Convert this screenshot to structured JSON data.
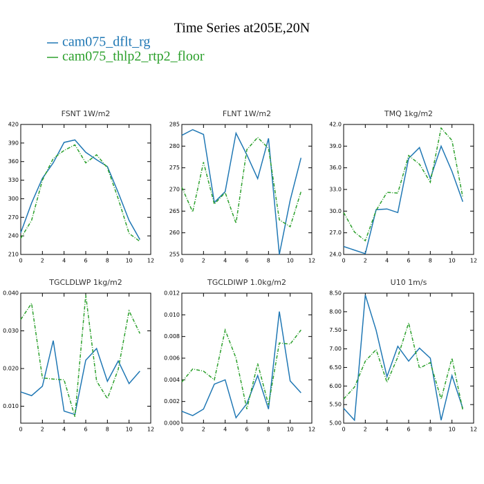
{
  "title": "Time Series at205E,20N",
  "chart_data": [
    {
      "type": "line",
      "title": "FSNT   1W/m2",
      "x": [
        0,
        1,
        2,
        3,
        4,
        5,
        6,
        7,
        8,
        9,
        10,
        11
      ],
      "xlim": [
        0,
        12
      ],
      "xticks": [
        0,
        2,
        4,
        6,
        8,
        10,
        12
      ],
      "ylim": [
        210,
        420
      ],
      "yticks": [
        210,
        240,
        270,
        300,
        330,
        360,
        390,
        420
      ],
      "series": [
        {
          "name": "cam075_dflt_rg",
          "color": "#1f77b4",
          "values": [
            245,
            293,
            333,
            358,
            391,
            395,
            375,
            363,
            352,
            310,
            265,
            234
          ]
        },
        {
          "name": "cam075_thlp2_rtp2_floor",
          "color": "#2ca02c",
          "dashed": true,
          "values": [
            236,
            265,
            330,
            365,
            378,
            387,
            358,
            371,
            350,
            300,
            244,
            231
          ]
        }
      ]
    },
    {
      "type": "line",
      "title": "FLNT   1W/m2",
      "x": [
        0,
        1,
        2,
        3,
        4,
        5,
        6,
        7,
        8,
        9,
        10,
        11
      ],
      "xlim": [
        0,
        12
      ],
      "xticks": [
        0,
        2,
        4,
        6,
        8,
        10,
        12
      ],
      "ylim": [
        255,
        285
      ],
      "yticks": [
        255,
        260,
        265,
        270,
        275,
        280,
        285
      ],
      "series": [
        {
          "color": "#1f77b4",
          "values": [
            282.5,
            283.8,
            282.7,
            267,
            269.5,
            283,
            278,
            272.5,
            281.8,
            255,
            267.5,
            277.3
          ]
        },
        {
          "color": "#2ca02c",
          "dashed": true,
          "values": [
            270.5,
            264.8,
            276.3,
            266.6,
            269.3,
            262.2,
            279.2,
            282,
            279.5,
            263,
            261.4,
            269.5
          ]
        }
      ]
    },
    {
      "type": "line",
      "title": "TMQ   1kg/m2",
      "x": [
        0,
        1,
        2,
        3,
        4,
        5,
        6,
        7,
        8,
        9,
        10,
        11
      ],
      "xlim": [
        0,
        12
      ],
      "xticks": [
        0,
        2,
        4,
        6,
        8,
        10,
        12
      ],
      "ylim": [
        24,
        42
      ],
      "yticks": [
        {
          "value": 24,
          "label": "24.0"
        },
        {
          "value": 27,
          "label": "27.0"
        },
        {
          "value": 30,
          "label": "30.0"
        },
        {
          "value": 33,
          "label": "33.0"
        },
        {
          "value": 36,
          "label": "36.0"
        },
        {
          "value": 39,
          "label": "39.0"
        },
        {
          "value": 42,
          "label": "42.0"
        }
      ],
      "series": [
        {
          "color": "#1f77b4",
          "values": [
            25.1,
            24.6,
            24.1,
            30.2,
            30.3,
            29.8,
            37.3,
            38.8,
            34.5,
            39.0,
            35.5,
            31.3
          ]
        },
        {
          "color": "#2ca02c",
          "dashed": true,
          "values": [
            29.8,
            27.1,
            25.9,
            30.1,
            32.6,
            32.5,
            37.7,
            36.5,
            34.0,
            41.5,
            39.8,
            31.9
          ]
        }
      ]
    },
    {
      "type": "line",
      "title": "TGCLDLWP   1kg/m2",
      "x": [
        0,
        1,
        2,
        3,
        4,
        5,
        6,
        7,
        8,
        9,
        10,
        11
      ],
      "xlim": [
        0,
        12
      ],
      "xticks": [
        0,
        2,
        4,
        6,
        8,
        10,
        12
      ],
      "ylim": [
        0.0055,
        0.04
      ],
      "yticks": [
        {
          "value": 0.01,
          "label": "0.010"
        },
        {
          "value": 0.02,
          "label": "0.020"
        },
        {
          "value": 0.03,
          "label": "0.030"
        },
        {
          "value": 0.04,
          "label": "0.040"
        }
      ],
      "series": [
        {
          "color": "#1f77b4",
          "values": [
            0.0138,
            0.0128,
            0.0153,
            0.0274,
            0.0087,
            0.0078,
            0.0222,
            0.0253,
            0.0166,
            0.022,
            0.016,
            0.0193
          ]
        },
        {
          "color": "#2ca02c",
          "dashed": true,
          "values": [
            0.033,
            0.0373,
            0.0175,
            0.0172,
            0.017,
            0.0072,
            0.0395,
            0.0167,
            0.012,
            0.0198,
            0.0353,
            0.0293
          ]
        }
      ]
    },
    {
      "type": "line",
      "title": "TGCLDIWP   1.0kg/m2",
      "x": [
        0,
        1,
        2,
        3,
        4,
        5,
        6,
        7,
        8,
        9,
        10,
        11
      ],
      "xlim": [
        0,
        12
      ],
      "xticks": [
        0,
        2,
        4,
        6,
        8,
        10,
        12
      ],
      "ylim": [
        0,
        0.012
      ],
      "yticks": [
        {
          "value": 0,
          "label": "0.000"
        },
        {
          "value": 0.002,
          "label": "0.002"
        },
        {
          "value": 0.004,
          "label": "0.004"
        },
        {
          "value": 0.006,
          "label": "0.006"
        },
        {
          "value": 0.008,
          "label": "0.008"
        },
        {
          "value": 0.01,
          "label": "0.010"
        },
        {
          "value": 0.012,
          "label": "0.012"
        }
      ],
      "series": [
        {
          "color": "#1f77b4",
          "values": [
            0.0011,
            0.0007,
            0.0013,
            0.0036,
            0.004,
            0.0005,
            0.0018,
            0.0044,
            0.0013,
            0.0103,
            0.0039,
            0.0028
          ]
        },
        {
          "color": "#2ca02c",
          "dashed": true,
          "values": [
            0.0038,
            0.005,
            0.0048,
            0.004,
            0.0086,
            0.006,
            0.0013,
            0.0055,
            0.0017,
            0.0074,
            0.0073,
            0.0086
          ]
        }
      ]
    },
    {
      "type": "line",
      "title": "U10   1m/s",
      "x": [
        0,
        1,
        2,
        3,
        4,
        5,
        6,
        7,
        8,
        9,
        10,
        11
      ],
      "xlim": [
        0,
        12
      ],
      "xticks": [
        0,
        2,
        4,
        6,
        8,
        10,
        12
      ],
      "ylim": [
        5,
        8.5
      ],
      "yticks": [
        {
          "value": 5,
          "label": "5.00"
        },
        {
          "value": 5.5,
          "label": "5.50"
        },
        {
          "value": 6,
          "label": "6.00"
        },
        {
          "value": 6.5,
          "label": "6.50"
        },
        {
          "value": 7,
          "label": "7.00"
        },
        {
          "value": 7.5,
          "label": "7.50"
        },
        {
          "value": 8,
          "label": "8.00"
        },
        {
          "value": 8.5,
          "label": "8.50"
        }
      ],
      "series": [
        {
          "color": "#1f77b4",
          "values": [
            5.4,
            5.08,
            8.45,
            7.5,
            6.25,
            7.07,
            6.67,
            7.02,
            6.75,
            5.08,
            6.28,
            5.4
          ]
        },
        {
          "color": "#2ca02c",
          "dashed": true,
          "values": [
            5.65,
            5.97,
            6.67,
            6.98,
            6.1,
            6.78,
            7.7,
            6.48,
            6.63,
            5.65,
            6.75,
            5.35
          ]
        }
      ]
    }
  ]
}
